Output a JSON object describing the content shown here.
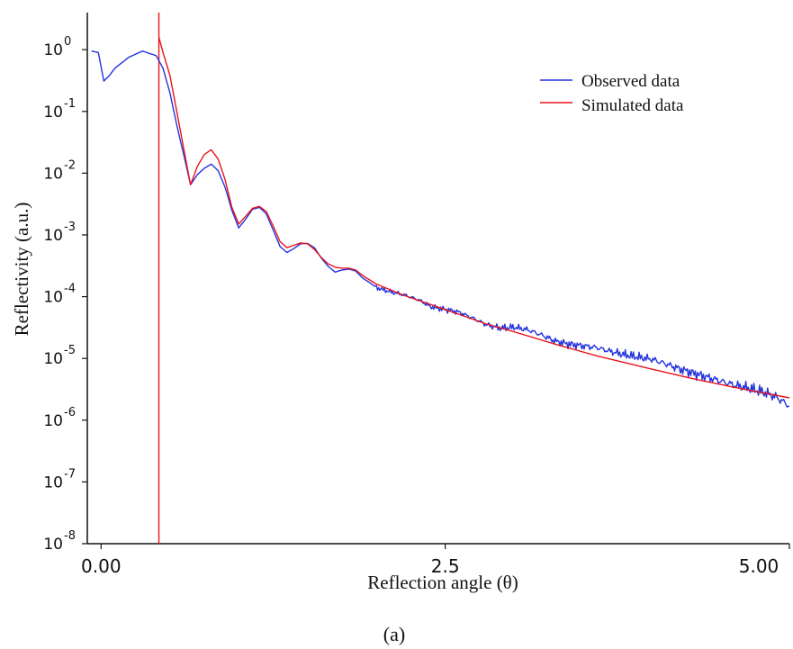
{
  "chart_data": {
    "type": "line",
    "title": "",
    "caption": "(a)",
    "xlabel": "Reflection angle (θ)",
    "ylabel": "Reflectivity (a.u.)",
    "xlim": [
      -0.1,
      5.0
    ],
    "ylim_log10": [
      -8,
      0.6
    ],
    "yscale": "log",
    "grid": false,
    "legend_position": "top-right",
    "x_ticks": [
      {
        "value": 0.0,
        "label": "0.00"
      },
      {
        "value": 2.5,
        "label": "2.5"
      },
      {
        "value": 5.0,
        "label": "5.00"
      }
    ],
    "y_ticks": [
      {
        "base": "10",
        "exp": "0",
        "value": 1
      },
      {
        "base": "10",
        "exp": "-1",
        "value": 0.1
      },
      {
        "base": "10",
        "exp": "-2",
        "value": 0.01
      },
      {
        "base": "10",
        "exp": "-3",
        "value": 0.001
      },
      {
        "base": "10",
        "exp": "-4",
        "value": 0.0001
      },
      {
        "base": "10",
        "exp": "-5",
        "value": 1e-05
      },
      {
        "base": "10",
        "exp": "-6",
        "value": 1e-06
      },
      {
        "base": "10",
        "exp": "-7",
        "value": 1e-07
      },
      {
        "base": "10",
        "exp": "-8",
        "value": 1e-08
      }
    ],
    "critical_angle_marker": {
      "x": 0.42,
      "color": "#e8141c"
    },
    "series": [
      {
        "name": "Observed data",
        "color": "#2233dd",
        "noisy_after_x": 2.0,
        "x": [
          -0.07,
          -0.02,
          0.02,
          0.06,
          0.1,
          0.2,
          0.3,
          0.4,
          0.45,
          0.5,
          0.55,
          0.6,
          0.65,
          0.7,
          0.75,
          0.8,
          0.85,
          0.9,
          0.95,
          1.0,
          1.05,
          1.1,
          1.15,
          1.2,
          1.25,
          1.3,
          1.35,
          1.4,
          1.45,
          1.5,
          1.55,
          1.6,
          1.65,
          1.7,
          1.75,
          1.8,
          1.85,
          1.9,
          1.95,
          2.0,
          2.1,
          2.2,
          2.3,
          2.4,
          2.5,
          2.6,
          2.7,
          2.8,
          2.9,
          3.0,
          3.1,
          3.2,
          3.3,
          3.4,
          3.5,
          3.6,
          3.7,
          3.8,
          3.9,
          4.0,
          4.1,
          4.2,
          4.3,
          4.4,
          4.5,
          4.6,
          4.7,
          4.8,
          4.9,
          5.0
        ],
        "y": [
          0.95,
          0.9,
          0.31,
          0.38,
          0.5,
          0.75,
          0.95,
          0.8,
          0.5,
          0.2,
          0.06,
          0.02,
          0.0065,
          0.0095,
          0.012,
          0.014,
          0.011,
          0.006,
          0.0025,
          0.0013,
          0.0018,
          0.0026,
          0.0028,
          0.0022,
          0.0012,
          0.00065,
          0.00052,
          0.0006,
          0.00072,
          0.00073,
          0.00062,
          0.00042,
          0.00031,
          0.00025,
          0.00027,
          0.00028,
          0.00026,
          0.0002,
          0.00017,
          0.00014,
          0.00012,
          0.000107,
          9e-05,
          6.8e-05,
          6.2e-05,
          5.6e-05,
          4.5e-05,
          3.5e-05,
          3.1e-05,
          3.2e-05,
          2.9e-05,
          2.4e-05,
          1.9e-05,
          1.7e-05,
          1.6e-05,
          1.5e-05,
          1.3e-05,
          1.15e-05,
          1.05e-05,
          9.7e-06,
          8.2e-06,
          6.8e-06,
          5.8e-06,
          5e-06,
          4.3e-06,
          3.7e-06,
          3.3e-06,
          2.9e-06,
          2.4e-06,
          1.7e-06
        ]
      },
      {
        "name": "Simulated data",
        "color": "#e8141c",
        "x": [
          0.42,
          0.45,
          0.5,
          0.55,
          0.6,
          0.65,
          0.7,
          0.75,
          0.8,
          0.85,
          0.9,
          0.95,
          1.0,
          1.05,
          1.1,
          1.15,
          1.2,
          1.25,
          1.3,
          1.35,
          1.4,
          1.45,
          1.5,
          1.55,
          1.6,
          1.65,
          1.7,
          1.75,
          1.8,
          1.85,
          1.9,
          2.0,
          2.2,
          2.5,
          2.8,
          3.0,
          3.3,
          3.6,
          4.0,
          4.3,
          4.6,
          5.0
        ],
        "y": [
          1.6,
          0.9,
          0.38,
          0.1,
          0.025,
          0.0065,
          0.013,
          0.02,
          0.024,
          0.017,
          0.008,
          0.0028,
          0.0015,
          0.002,
          0.0027,
          0.0029,
          0.0024,
          0.0014,
          0.00078,
          0.00062,
          0.00068,
          0.00074,
          0.00072,
          0.00058,
          0.00043,
          0.00034,
          0.0003,
          0.00029,
          0.00029,
          0.00027,
          0.00022,
          0.00016,
          0.000105,
          6.2e-05,
          3.6e-05,
          2.7e-05,
          1.7e-05,
          1.1e-05,
          6.7e-06,
          4.7e-06,
          3.4e-06,
          2.3e-06
        ]
      }
    ]
  }
}
